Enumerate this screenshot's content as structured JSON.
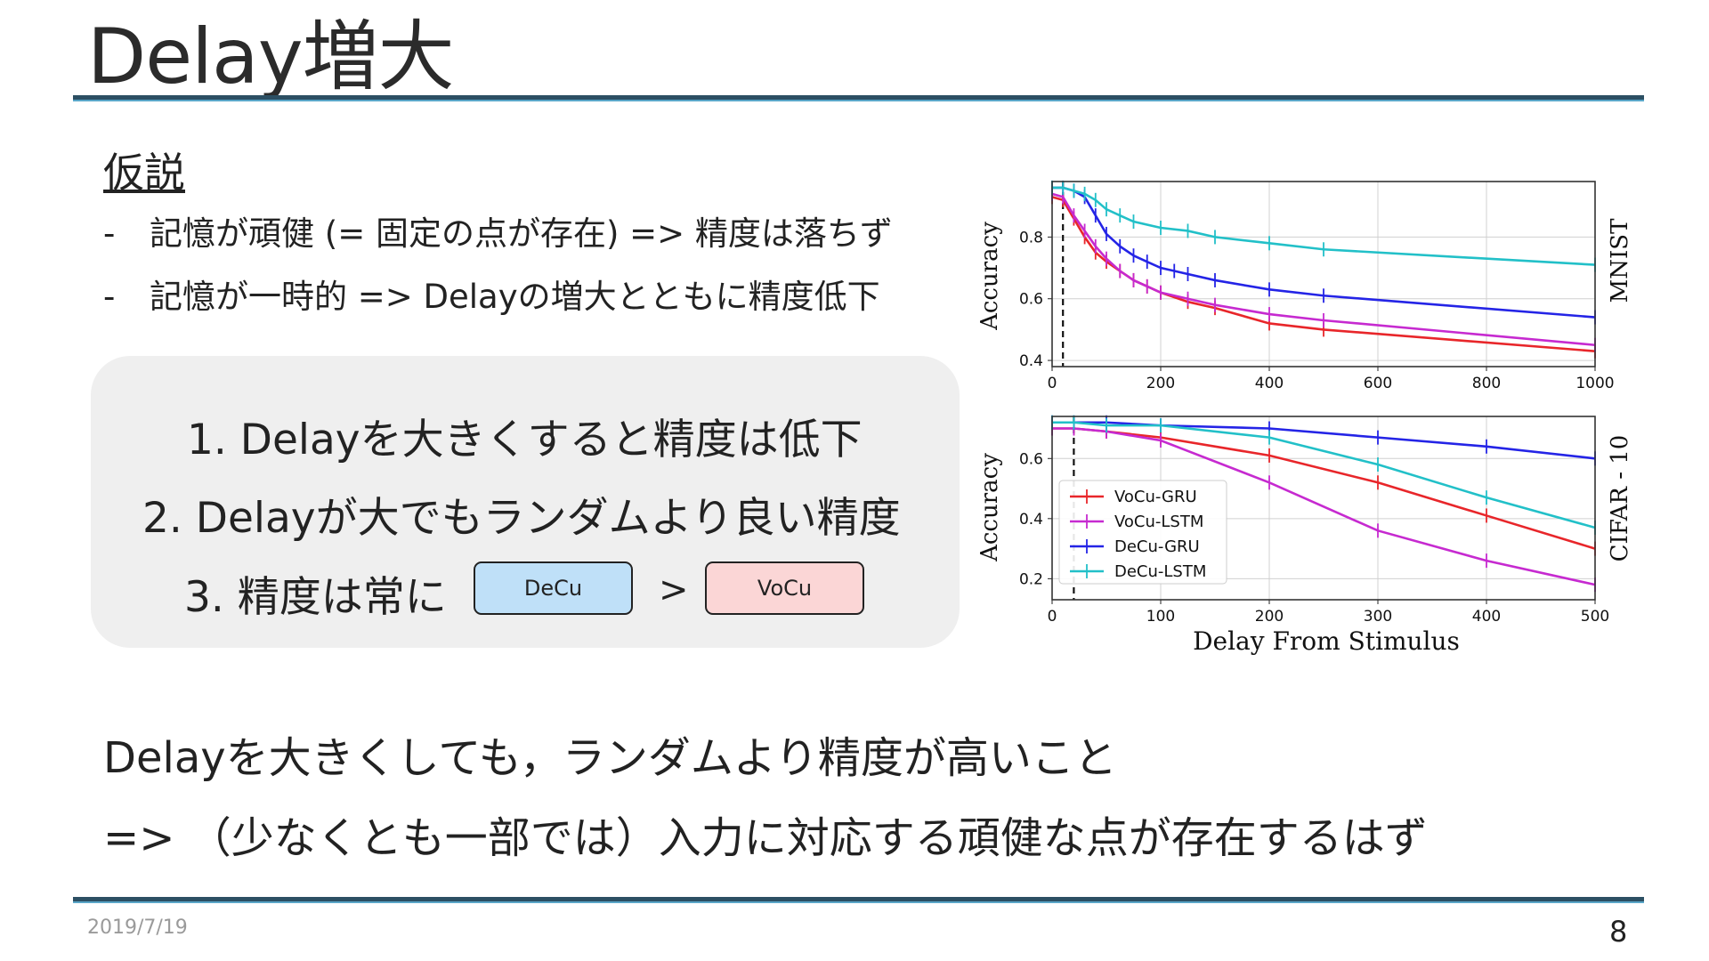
{
  "slide": {
    "title": "Delay増大",
    "hypothesis_title": "仮説",
    "bullets": [
      {
        "dash": "-",
        "text": "記憶が頑健 (= 固定の点が存在) => 精度は落ちず"
      },
      {
        "dash": "-",
        "text": "記憶が一時的 => Delayの増大とともに精度低下"
      }
    ],
    "findings": [
      "1. Delayを大きくすると精度は低下",
      "2. Delayが大でもランダムより良い精度",
      "3. 精度は常に"
    ],
    "compare": {
      "left": "DeCu",
      "op": ">",
      "right": "VoCu"
    },
    "conclusion": [
      "Delayを大きくしても，ランダムより精度が高いこと",
      "=> （少なくとも一部では）入力に対応する頑健な点が存在するはず"
    ],
    "date": "2019/7/19",
    "page_number": "8"
  },
  "chart_data": [
    {
      "type": "line",
      "title": "MNIST",
      "xlabel": "",
      "ylabel": "Accuracy",
      "xlim": [
        0,
        1000
      ],
      "ylim": [
        0.38,
        0.98
      ],
      "xticks": [
        0,
        200,
        400,
        600,
        800,
        1000
      ],
      "yticks": [
        0.4,
        0.6,
        0.8
      ],
      "grid": true,
      "stimulus_line_x": 20,
      "series": [
        {
          "name": "VoCu-GRU",
          "color": "#e8262a",
          "x": [
            0,
            20,
            40,
            60,
            80,
            100,
            125,
            150,
            175,
            200,
            250,
            300,
            400,
            500,
            1000
          ],
          "y": [
            0.93,
            0.92,
            0.86,
            0.8,
            0.75,
            0.72,
            0.69,
            0.66,
            0.64,
            0.62,
            0.59,
            0.57,
            0.52,
            0.5,
            0.43
          ]
        },
        {
          "name": "VoCu-LSTM",
          "color": "#c62ad0",
          "x": [
            0,
            20,
            40,
            60,
            80,
            100,
            125,
            150,
            175,
            200,
            250,
            300,
            400,
            500,
            1000
          ],
          "y": [
            0.94,
            0.93,
            0.87,
            0.82,
            0.77,
            0.73,
            0.69,
            0.66,
            0.64,
            0.62,
            0.6,
            0.58,
            0.55,
            0.53,
            0.45
          ]
        },
        {
          "name": "DeCu-GRU",
          "color": "#2424e6",
          "x": [
            0,
            20,
            40,
            60,
            80,
            100,
            125,
            150,
            175,
            200,
            225,
            250,
            300,
            400,
            500,
            1000
          ],
          "y": [
            0.96,
            0.96,
            0.95,
            0.93,
            0.87,
            0.81,
            0.77,
            0.74,
            0.72,
            0.7,
            0.69,
            0.68,
            0.66,
            0.63,
            0.61,
            0.54
          ]
        },
        {
          "name": "DeCu-LSTM",
          "color": "#22c0c8",
          "x": [
            0,
            20,
            40,
            60,
            80,
            100,
            125,
            150,
            200,
            250,
            300,
            400,
            500,
            1000
          ],
          "y": [
            0.96,
            0.96,
            0.95,
            0.94,
            0.92,
            0.89,
            0.87,
            0.85,
            0.83,
            0.82,
            0.8,
            0.78,
            0.76,
            0.71
          ]
        }
      ]
    },
    {
      "type": "line",
      "title": "CIFAR - 10",
      "xlabel": "Delay From Stimulus",
      "ylabel": "Accuracy",
      "xlim": [
        0,
        500
      ],
      "ylim": [
        0.13,
        0.74
      ],
      "xticks": [
        0,
        100,
        200,
        300,
        400,
        500
      ],
      "yticks": [
        0.2,
        0.4,
        0.6
      ],
      "grid": true,
      "legend": "left",
      "stimulus_line_x": 20,
      "series": [
        {
          "name": "VoCu-GRU",
          "color": "#e8262a",
          "x": [
            0,
            20,
            50,
            100,
            200,
            300,
            400,
            500
          ],
          "y": [
            0.7,
            0.7,
            0.69,
            0.67,
            0.61,
            0.52,
            0.41,
            0.3
          ]
        },
        {
          "name": "VoCu-LSTM",
          "color": "#c62ad0",
          "x": [
            0,
            20,
            50,
            100,
            200,
            300,
            400,
            500
          ],
          "y": [
            0.7,
            0.7,
            0.69,
            0.66,
            0.52,
            0.36,
            0.26,
            0.18
          ]
        },
        {
          "name": "DeCu-GRU",
          "color": "#2424e6",
          "x": [
            0,
            20,
            50,
            100,
            200,
            300,
            400,
            500
          ],
          "y": [
            0.72,
            0.72,
            0.72,
            0.71,
            0.7,
            0.67,
            0.64,
            0.6
          ]
        },
        {
          "name": "DeCu-LSTM",
          "color": "#22c0c8",
          "x": [
            0,
            20,
            50,
            100,
            200,
            300,
            400,
            500
          ],
          "y": [
            0.72,
            0.72,
            0.71,
            0.71,
            0.67,
            0.58,
            0.47,
            0.37
          ]
        }
      ]
    }
  ]
}
